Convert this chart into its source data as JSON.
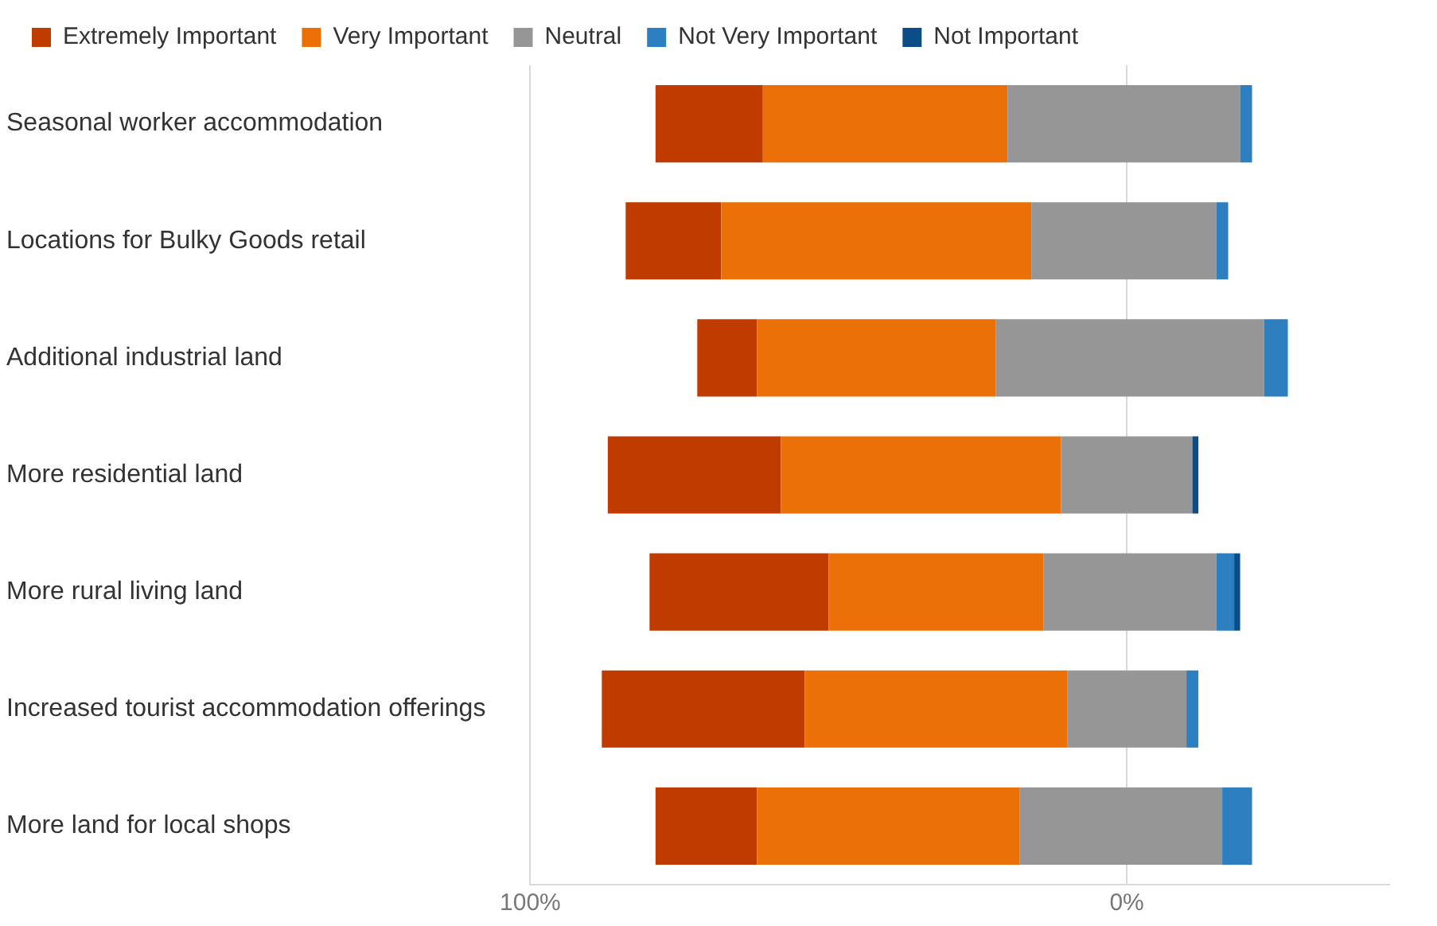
{
  "chart_data": {
    "type": "bar",
    "orientation": "horizontal",
    "categories": [
      "Seasonal worker accommodation",
      "Locations for Bulky Goods retail",
      "Additional industrial land",
      "More residential land",
      "More rural living land",
      "Increased tourist accommodation offerings",
      "More land for local shops"
    ],
    "series": [
      {
        "name": "Not Important",
        "color": "#0c4d87",
        "base": [
          null,
          null,
          null,
          -12,
          -19,
          null,
          null
        ],
        "values": [
          null,
          null,
          null,
          1,
          1,
          null,
          null
        ]
      },
      {
        "name": "Not Very Important",
        "color": "#2e7fbf",
        "base": [
          -21,
          -17,
          -27,
          null,
          -18,
          -12,
          -21
        ],
        "values": [
          2,
          2,
          4,
          null,
          3,
          2,
          5
        ]
      },
      {
        "name": "Neutral",
        "color": "#969696",
        "base": [
          -19,
          -15,
          -23,
          -11,
          -15,
          -10,
          -16
        ],
        "values": [
          39,
          31,
          45,
          22,
          29,
          20,
          34
        ]
      },
      {
        "name": "Very Important",
        "color": "#ec7008",
        "base": [
          20,
          16,
          22,
          11,
          14,
          10,
          18
        ],
        "values": [
          41,
          52,
          40,
          47,
          36,
          44,
          44
        ]
      },
      {
        "name": "Extremely Important",
        "color": "#bf3b00",
        "base": [
          61,
          68,
          62,
          58,
          50,
          54,
          62
        ],
        "values": [
          18,
          16,
          10,
          29,
          30,
          34,
          17
        ]
      }
    ],
    "xlim": [
      100,
      -44
    ],
    "xticks": [
      {
        "value": 100,
        "label": "100%"
      },
      {
        "value": 0,
        "label": "0%"
      }
    ],
    "grid": "x",
    "legend": "top left"
  }
}
